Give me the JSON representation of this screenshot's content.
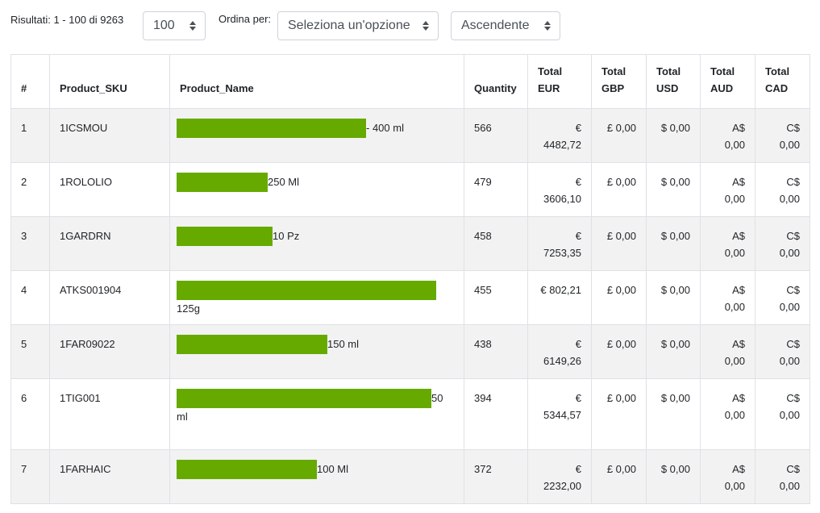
{
  "controls": {
    "results_text": "Risultati: 1 - 100 di 9263",
    "per_page_value": "100",
    "sort_label": "Ordina per:",
    "sort_value": "Seleziona un'opzione",
    "order_value": "Ascendente"
  },
  "table": {
    "headers": [
      "#",
      "Product_SKU",
      "Product_Name",
      "Quantity",
      "Total EUR",
      "Total GBP",
      "Total USD",
      "Total AUD",
      "Total CAD"
    ],
    "rows": [
      {
        "idx": "1",
        "sku": "1ICSMOU",
        "name": "- 400 ml",
        "redacted_fraction": 0.73,
        "qty": "566",
        "eur": "€ 4482,72",
        "gbp": "£ 0,00",
        "usd": "$ 0,00",
        "aud": "A$ 0,00",
        "cad": "C$ 0,00"
      },
      {
        "idx": "2",
        "sku": "1ROLOLIO",
        "name": "250 Ml",
        "redacted_fraction": 0.35,
        "qty": "479",
        "eur": "€ 3606,10",
        "gbp": "£ 0,00",
        "usd": "$ 0,00",
        "aud": "A$ 0,00",
        "cad": "C$ 0,00"
      },
      {
        "idx": "3",
        "sku": "1GARDRN",
        "name": "10 Pz",
        "redacted_fraction": 0.37,
        "qty": "458",
        "eur": "€ 7253,35",
        "gbp": "£ 0,00",
        "usd": "$ 0,00",
        "aud": "A$ 0,00",
        "cad": "C$ 0,00"
      },
      {
        "idx": "4",
        "sku": "ATKS001904",
        "name": "125g",
        "redacted_fraction": 1.0,
        "qty": "455",
        "eur": "€ 802,21",
        "gbp": "£ 0,00",
        "usd": "$ 0,00",
        "aud": "A$ 0,00",
        "cad": "C$ 0,00"
      },
      {
        "idx": "5",
        "sku": "1FAR09022",
        "name": "150 ml",
        "redacted_fraction": 0.58,
        "qty": "438",
        "eur": "€ 6149,26",
        "gbp": "£ 0,00",
        "usd": "$ 0,00",
        "aud": "A$ 0,00",
        "cad": "C$ 0,00"
      },
      {
        "idx": "6",
        "sku": "1TIG001",
        "name": "50 ml",
        "redacted_fraction": 0.98,
        "qty": "394",
        "eur": "€ 5344,57",
        "gbp": "£ 0,00",
        "usd": "$ 0,00",
        "aud": "A$ 0,00",
        "cad": "C$ 0,00"
      },
      {
        "idx": "7",
        "sku": "1FARHAIC",
        "name": "100 Ml",
        "redacted_fraction": 0.54,
        "qty": "372",
        "eur": "€ 2232,00",
        "gbp": "£ 0,00",
        "usd": "$ 0,00",
        "aud": "A$ 0,00",
        "cad": "C$ 0,00"
      }
    ]
  },
  "colors": {
    "redaction_bar": "#66aa00",
    "stripe": "#f2f2f2",
    "border": "#dee2e6"
  },
  "icons": {
    "select_chevron": "chevron-up-down-icon"
  }
}
